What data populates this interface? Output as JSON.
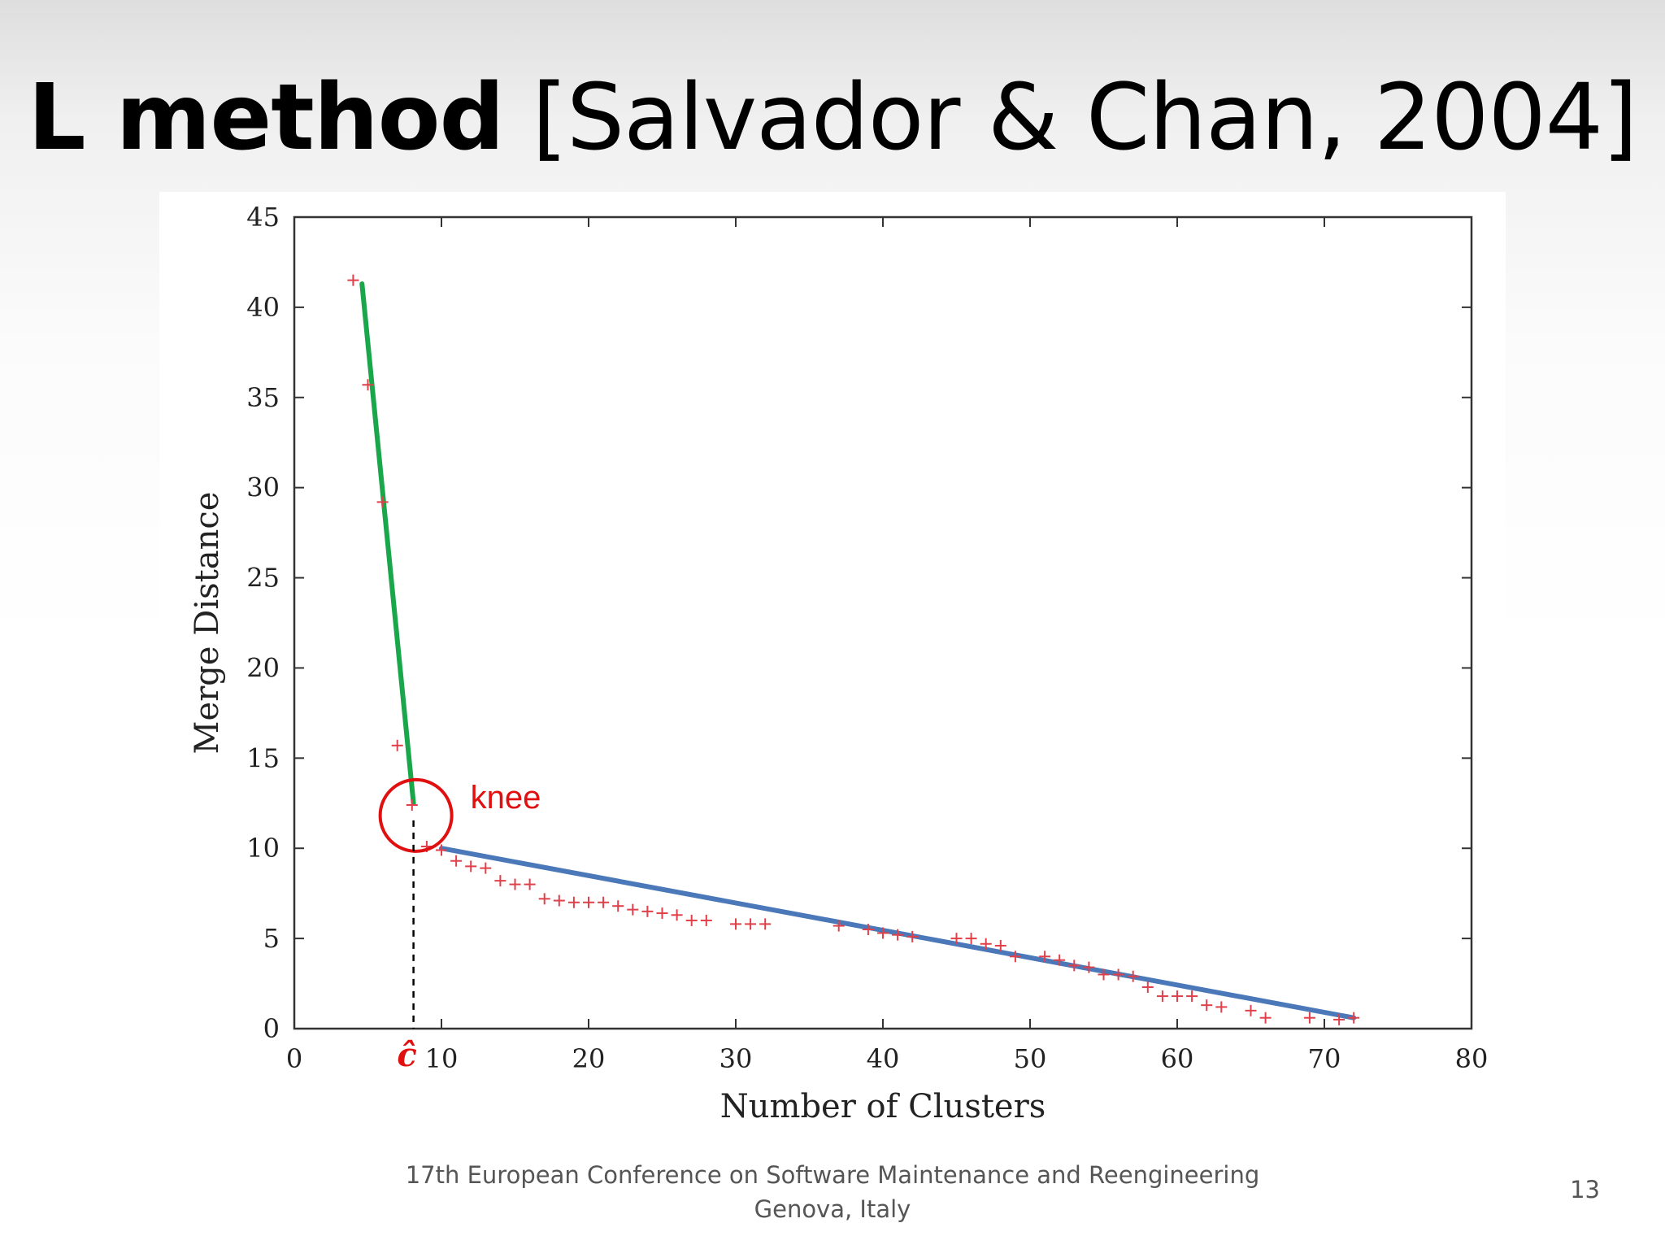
{
  "slide": {
    "title_bold": "L method",
    "title_rest": "[Salvador & Chan, 2004]",
    "footer_line1": "17th European Conference on Software Maintenance and Reengineering",
    "footer_line2": "Genova, Italy",
    "page_number": "13"
  },
  "chart_data": {
    "type": "scatter",
    "xlabel": "Number of Clusters",
    "ylabel": "Merge Distance",
    "xlim": [
      0,
      80
    ],
    "ylim": [
      0,
      45
    ],
    "xticks": [
      0,
      10,
      20,
      30,
      40,
      50,
      60,
      70,
      80
    ],
    "yticks": [
      0,
      5,
      10,
      15,
      20,
      25,
      30,
      35,
      40,
      45
    ],
    "marker": "+",
    "marker_color": "#e0404a",
    "points": [
      [
        4,
        41.5
      ],
      [
        5,
        35.7
      ],
      [
        6,
        29.2
      ],
      [
        7,
        15.7
      ],
      [
        8,
        12.4
      ],
      [
        9,
        10.1
      ],
      [
        10,
        9.9
      ],
      [
        11,
        9.3
      ],
      [
        12,
        9.0
      ],
      [
        13,
        8.9
      ],
      [
        14,
        8.2
      ],
      [
        15,
        8.0
      ],
      [
        16,
        8.0
      ],
      [
        17,
        7.2
      ],
      [
        18,
        7.1
      ],
      [
        19,
        7.0
      ],
      [
        20,
        7.0
      ],
      [
        21,
        7.0
      ],
      [
        22,
        6.8
      ],
      [
        23,
        6.6
      ],
      [
        24,
        6.5
      ],
      [
        25,
        6.4
      ],
      [
        26,
        6.3
      ],
      [
        27,
        6.0
      ],
      [
        28,
        6.0
      ],
      [
        30,
        5.8
      ],
      [
        31,
        5.8
      ],
      [
        32,
        5.8
      ],
      [
        37,
        5.7
      ],
      [
        39,
        5.5
      ],
      [
        40,
        5.3
      ],
      [
        41,
        5.2
      ],
      [
        42,
        5.1
      ],
      [
        45,
        5.0
      ],
      [
        46,
        5.0
      ],
      [
        47,
        4.7
      ],
      [
        48,
        4.6
      ],
      [
        49,
        4.0
      ],
      [
        51,
        4.0
      ],
      [
        52,
        3.8
      ],
      [
        53,
        3.5
      ],
      [
        54,
        3.4
      ],
      [
        55,
        3.0
      ],
      [
        56,
        3.0
      ],
      [
        57,
        2.9
      ],
      [
        58,
        2.3
      ],
      [
        59,
        1.8
      ],
      [
        60,
        1.8
      ],
      [
        61,
        1.8
      ],
      [
        62,
        1.3
      ],
      [
        63,
        1.2
      ],
      [
        65,
        1.0
      ],
      [
        66,
        0.6
      ],
      [
        69,
        0.6
      ],
      [
        71,
        0.5
      ],
      [
        72,
        0.6
      ]
    ],
    "fit_lines": [
      {
        "color": "#1aa64a",
        "points": [
          [
            4.6,
            41.3
          ],
          [
            8.1,
            12.5
          ]
        ]
      },
      {
        "color": "#4a78b8",
        "points": [
          [
            10,
            10.0
          ],
          [
            72,
            0.6
          ]
        ]
      }
    ],
    "knee": {
      "label": "knee",
      "label_color": "#e01010",
      "x": 8.1,
      "y": 12.0,
      "cut_label": "ĉ"
    }
  }
}
